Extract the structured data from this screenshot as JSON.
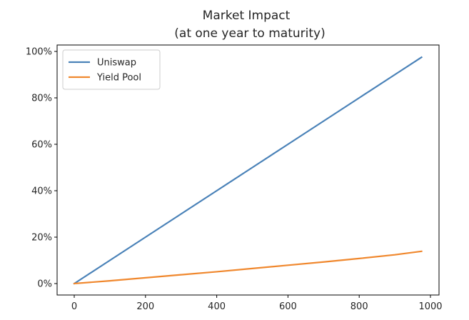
{
  "chart_data": {
    "type": "line",
    "title": "Market Impact",
    "subtitle": "(at one year to maturity)",
    "xlabel": "",
    "ylabel": "",
    "xlim": [
      0,
      1000
    ],
    "ylim": [
      0,
      1
    ],
    "x_ticks": [
      {
        "value": 0,
        "label": "0"
      },
      {
        "value": 200,
        "label": "200"
      },
      {
        "value": 400,
        "label": "400"
      },
      {
        "value": 600,
        "label": "600"
      },
      {
        "value": 800,
        "label": "800"
      },
      {
        "value": 1000,
        "label": "1000"
      }
    ],
    "y_ticks": [
      {
        "value": 0,
        "label": "0%"
      },
      {
        "value": 0.2,
        "label": "20%"
      },
      {
        "value": 0.4,
        "label": "40%"
      },
      {
        "value": 0.6,
        "label": "60%"
      },
      {
        "value": 0.8,
        "label": "80%"
      },
      {
        "value": 1.0,
        "label": "100%"
      }
    ],
    "grid": false,
    "legend_position": "top-left",
    "series": [
      {
        "name": "Uniswap",
        "color": "#4a82b8",
        "x": [
          0,
          100,
          200,
          300,
          400,
          500,
          600,
          700,
          800,
          900,
          975
        ],
        "y": [
          0,
          0.1,
          0.2,
          0.3,
          0.4,
          0.5,
          0.6,
          0.7,
          0.8,
          0.9,
          0.975
        ]
      },
      {
        "name": "Yield Pool",
        "color": "#f0882e",
        "x": [
          0,
          100,
          200,
          300,
          400,
          500,
          600,
          700,
          800,
          900,
          975
        ],
        "y": [
          0,
          0.012,
          0.025,
          0.038,
          0.051,
          0.065,
          0.079,
          0.093,
          0.108,
          0.124,
          0.139
        ]
      }
    ]
  }
}
